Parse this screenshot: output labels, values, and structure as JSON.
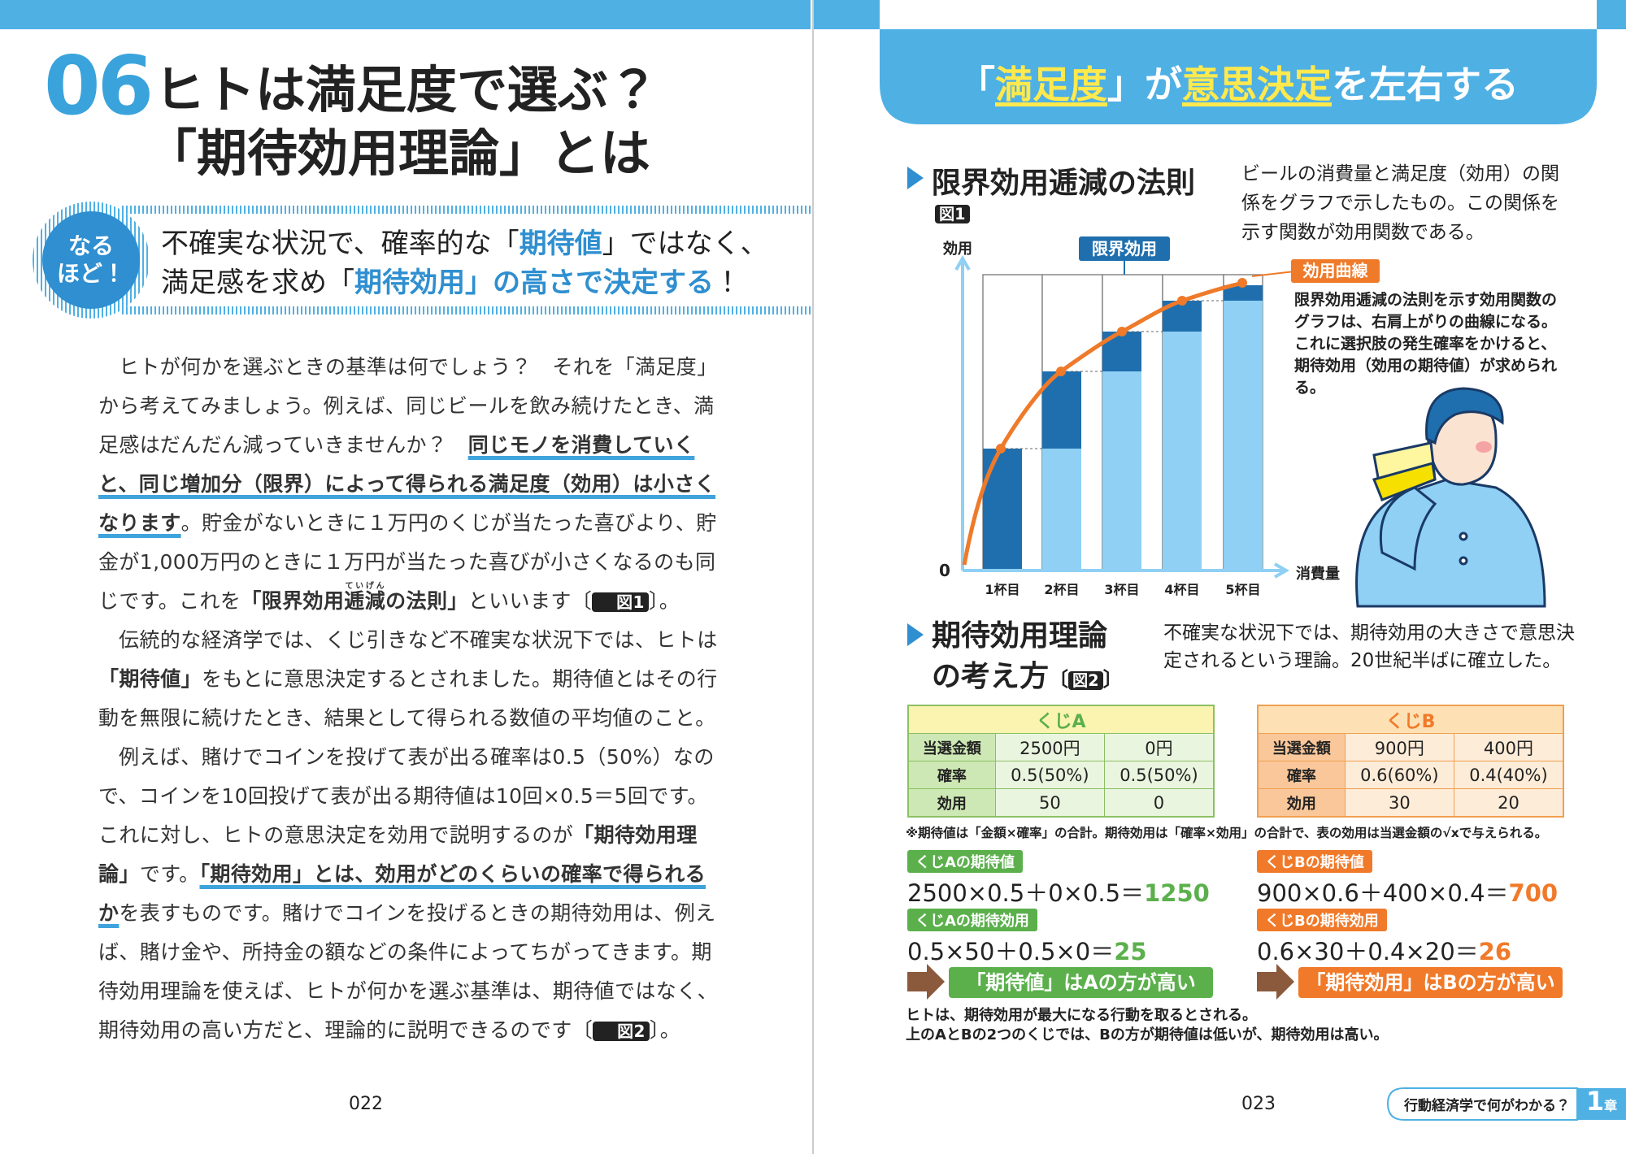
{
  "left_page": {
    "number": "06",
    "title": [
      "ヒトは満足度で選ぶ？",
      "「期待効用理論」とは"
    ],
    "badge": [
      "なる",
      "ほど！"
    ],
    "lead": [
      [
        "不確実な状況で、確率的な「",
        "期待値",
        "」ではなく、"
      ],
      [
        "満足感を求め「",
        "期待効用",
        "」の高さで決定する",
        "！"
      ]
    ],
    "body": [
      [
        "ヒトが何かを選ぶときの基準は何でしょう？　それを「満足度」から考えてみましょう。例えば、同じビールを飲み続けたとき、満足感はだんだん減っていきませんか？　",
        "同じモノを消費していくと、同じ増加分（限界）によって得られる満足度（効用）は小さくなります",
        "。貯金がないときに１万円のくじが当たった喜びより、貯金が1,000万円のときに１万円が当たった喜びが小さくなるのも同じです。これを",
        "「限界効用",
        "逓減",
        "ていげん",
        "の法則」",
        "といいます〔",
        "図1",
        "〕。"
      ],
      [
        "伝統的な経済学では、くじ引きなど不確実な状況下では、ヒトは",
        "「期待値」",
        "をもとに意思決定するとされました。期待値とはその行動を無限に続けたとき、結果として得られる数値の平均値のこと。"
      ],
      [
        "例えば、賭けでコインを投げて表が出る確率は0.5（50%）なので、コインを10回投げて表が出る期待値は10回×0.5＝5回です。これに対し、ヒトの意思決定を効用で説明するのが",
        "「期待効用理論」",
        "です。",
        "「期待効用」とは、効用がどのくらいの確率で得られるか",
        "を表すものです。賭けでコインを投げるときの期待効用は、例えば、賭け金や、所持金の額などの条件によってちがってきます。期待効用理論を使えば、ヒトが何かを選ぶ基準は、期待値ではなく、期待効用の高い方だと、理論的に説明できるのです〔",
        "図2",
        "〕。"
      ]
    ],
    "page_number": "022"
  },
  "right_page": {
    "banner": [
      "「",
      "満足度",
      "」が",
      "意思決定",
      "を左右する"
    ],
    "figure1": {
      "title": "限界効用逓減の法則",
      "tag": "図1",
      "description": "ビールの消費量と満足度（効用）の関係をグラフで示したもの。この関係を示す関数が効用関数である。",
      "y_label": "効用",
      "origin": "0",
      "x_label": "消費量",
      "marginal_label": "限界効用",
      "curve_label": "効用曲線",
      "categories": [
        "1杯目",
        "2杯目",
        "3杯目",
        "4杯目",
        "5杯目"
      ],
      "callout": "限界効用逓減の法則を示す効用関数のグラフは、右肩上がりの曲線になる。これに選択肢の発生確率をかけると、期待効用（効用の期待値）が求められる。"
    },
    "figure2": {
      "title": [
        "期待効用理論",
        "の考え方"
      ],
      "tag": "図2",
      "description": "不確実な状況下では、期待効用の大きさで意思決定されるという理論。20世紀半ばに確立した。",
      "tables": [
        {
          "title": "くじA",
          "rows": [
            [
              "当選金額",
              "2500円",
              "0円"
            ],
            [
              "確率",
              "0.5(50%)",
              "0.5(50%)"
            ],
            [
              "効用",
              "50",
              "0"
            ]
          ]
        },
        {
          "title": "くじB",
          "rows": [
            [
              "当選金額",
              "900円",
              "400円"
            ],
            [
              "確率",
              "0.6(60%)",
              "0.4(40%)"
            ],
            [
              "効用",
              "30",
              "20"
            ]
          ]
        }
      ],
      "note": "※期待値は「金額×確率」の合計。期待効用は「確率×効用」の合計で、表の効用は当選金額の√xで与えられる。",
      "calculations": [
        [
          {
            "label": "くじAの期待値",
            "formula": "2500×0.5＋0×0.5＝",
            "result": "1250"
          },
          {
            "label": "くじAの期待効用",
            "formula": "0.5×50＋0.5×0＝",
            "result": "25"
          }
        ],
        [
          {
            "label": "くじBの期待値",
            "formula": "900×0.6＋400×0.4＝",
            "result": "700"
          },
          {
            "label": "くじBの期待効用",
            "formula": "0.6×30＋0.4×20＝",
            "result": "26"
          }
        ]
      ],
      "conclusions": [
        "「期待値」はAの方が高い",
        "「期待効用」はBの方が高い"
      ],
      "closing": [
        "ヒトは、期待効用が最大になる行動を取るとされる。",
        "上のAとBの2つのくじでは、Bの方が期待値は低いが、期待効用は高い。"
      ]
    },
    "page_number": "023",
    "footer": {
      "section": "行動経済学で何がわかる？",
      "chapter_number": "1",
      "chapter_suffix": "章"
    }
  }
}
